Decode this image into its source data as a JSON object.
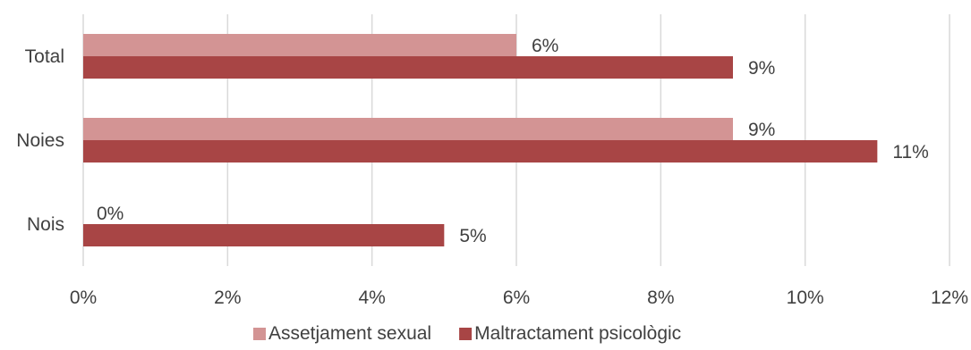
{
  "chart_data": {
    "type": "bar",
    "orientation": "horizontal",
    "categories": [
      "Total",
      "Noies",
      "Nois"
    ],
    "series": [
      {
        "name": "Assetjament sexual",
        "color": "#d39494",
        "values": [
          6,
          9,
          0
        ],
        "labels": [
          "6%",
          "9%",
          "0%"
        ]
      },
      {
        "name": "Maltractament psicològic",
        "color": "#a84545",
        "values": [
          9,
          11,
          5
        ],
        "labels": [
          "9%",
          "11%",
          "5%"
        ]
      }
    ],
    "xlim": [
      0,
      12
    ],
    "xticks": [
      0,
      2,
      4,
      6,
      8,
      10,
      12
    ],
    "xtick_labels": [
      "0%",
      "2%",
      "4%",
      "6%",
      "8%",
      "10%",
      "12%"
    ],
    "grid": "vertical",
    "legend_position": "bottom",
    "title": "",
    "xlabel": "",
    "ylabel": ""
  }
}
